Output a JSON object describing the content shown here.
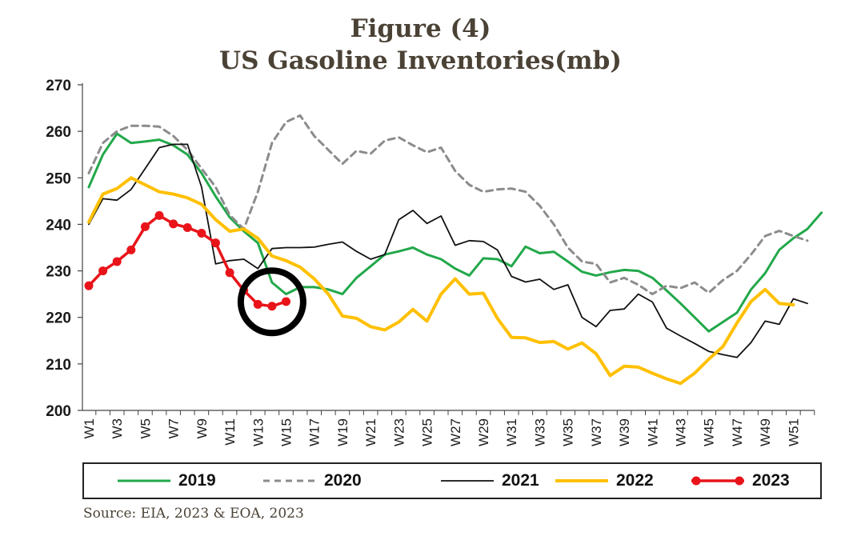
{
  "title_line1": "Figure (4)",
  "title_line2": "US Gasoline Inventories(mb)",
  "source": "Source: EIA, 2023 & EOA, 2023",
  "chart_data": {
    "type": "line",
    "ylim": [
      200,
      270
    ],
    "yticks": [
      "200",
      "210",
      "220",
      "230",
      "240",
      "250",
      "260",
      "270"
    ],
    "xtick_labels": [
      "W1",
      "W3",
      "W5",
      "W7",
      "W9",
      "W11",
      "W13",
      "W15",
      "W17",
      "W19",
      "W21",
      "W23",
      "W25",
      "W27",
      "W29",
      "W31",
      "W33",
      "W35",
      "W37",
      "W39",
      "W41",
      "W43",
      "W45",
      "W47",
      "W49",
      "W51"
    ],
    "weeks": 52,
    "series": [
      {
        "name": "2019",
        "color": "#22a84a",
        "dash": "",
        "width": 3,
        "markers": false,
        "values": [
          248,
          255,
          259.5,
          257.5,
          257.8,
          258.2,
          257,
          255,
          251,
          246,
          241.5,
          238.5,
          236,
          227.5,
          225,
          226.5,
          226.5,
          226,
          225,
          228.5,
          231,
          233.5,
          234.2,
          235,
          233.5,
          232.5,
          230.5,
          229,
          232.7,
          232.5,
          231,
          235.2,
          233.8,
          234.1,
          232,
          229.8,
          229,
          229.7,
          230.2,
          230,
          228.5,
          225.8,
          223,
          220,
          217,
          219,
          221,
          226,
          229.5,
          234.5,
          237,
          239,
          242.5
        ]
      },
      {
        "name": "2020",
        "color": "#8c8c8c",
        "dash": "8,6",
        "width": 3,
        "markers": false,
        "values": [
          251,
          257.5,
          260,
          261.2,
          261.2,
          261,
          259,
          256,
          252,
          248,
          242,
          239,
          247,
          257.5,
          262,
          263.4,
          259,
          256,
          253,
          255.8,
          255.2,
          258,
          258.7,
          257,
          255.5,
          256.5,
          251.5,
          248.5,
          247,
          247.5,
          247.7,
          247,
          244,
          240,
          235,
          232,
          231.5,
          227.5,
          228.5,
          227,
          225,
          226.8,
          226.3,
          227.5,
          225.3,
          228,
          230,
          233.5,
          237.5,
          238.6,
          237.5,
          236.5
        ]
      },
      {
        "name": "2021",
        "color": "#111111",
        "dash": "",
        "width": 1.8,
        "markers": false,
        "values": [
          240,
          245.5,
          245.2,
          247.5,
          252,
          256.5,
          257.2,
          257.2,
          248,
          231.5,
          232.2,
          232.5,
          230.5,
          234.8,
          235,
          235,
          235.1,
          235.7,
          236.2,
          234.2,
          232.5,
          233.5,
          241,
          243,
          240.2,
          241.8,
          235.5,
          236.5,
          236.3,
          234.5,
          228.8,
          227.6,
          228.2,
          226,
          227,
          220,
          218,
          221.5,
          221.8,
          225,
          223.3,
          217.7,
          216,
          214.4,
          212.7,
          212,
          211.4,
          214.6,
          219.2,
          218.5,
          224,
          223
        ]
      },
      {
        "name": "2022",
        "color": "#ffc000",
        "dash": "",
        "width": 4,
        "markers": false,
        "values": [
          240.5,
          246.5,
          247.7,
          250,
          248.5,
          247,
          246.5,
          245.7,
          244.3,
          241,
          238.5,
          239,
          237,
          233.2,
          232.2,
          230.8,
          228.3,
          225,
          220.3,
          219.8,
          218,
          217.3,
          219,
          221.7,
          219.2,
          225,
          228.3,
          225,
          225.2,
          219.8,
          215.7,
          215.6,
          214.6,
          214.8,
          213.2,
          214.5,
          212.2,
          207.5,
          209.5,
          209.3,
          208,
          206.8,
          205.8,
          208,
          211,
          213.7,
          218.8,
          223.4,
          226,
          223,
          222.7
        ]
      },
      {
        "name": "2023",
        "color": "#e8141a",
        "dash": "",
        "width": 3.5,
        "markers": true,
        "values": [
          226.8,
          230,
          232,
          234.5,
          239.5,
          241.9,
          240.1,
          239.3,
          238.1,
          236,
          229.6,
          225.8,
          222.8,
          222.4,
          223.4
        ]
      }
    ],
    "annotation": {
      "type": "circle",
      "at_week": 14,
      "at_value": 223,
      "color": "#000000"
    }
  }
}
